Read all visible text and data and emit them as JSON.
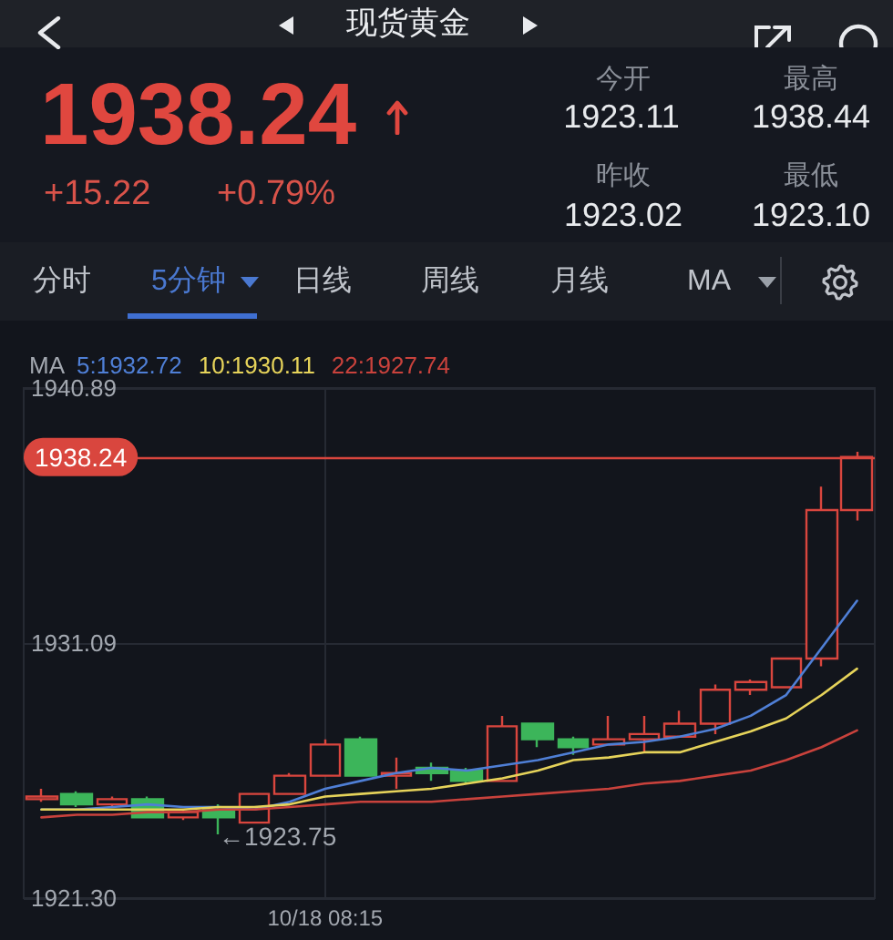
{
  "chart_data": {
    "type": "candlestick",
    "title": "现货黄金",
    "categories": [
      null,
      null,
      null,
      null,
      null,
      null,
      null,
      null,
      "10/18 08:15",
      null,
      null,
      null,
      null,
      null,
      null,
      null,
      null,
      null,
      null,
      null,
      null,
      null,
      null,
      null
    ],
    "ohlc": [
      [
        1925.1,
        1925.5,
        1925.0,
        1925.2
      ],
      [
        1925.3,
        1925.4,
        1924.8,
        1924.9
      ],
      [
        1924.9,
        1925.2,
        1924.8,
        1925.1
      ],
      [
        1925.1,
        1925.2,
        1924.4,
        1924.4
      ],
      [
        1924.4,
        1924.7,
        1924.3,
        1924.6
      ],
      [
        1924.7,
        1924.9,
        1923.75,
        1924.4
      ],
      [
        1924.2,
        1925.3,
        1924.2,
        1925.3
      ],
      [
        1925.3,
        1926.1,
        1925.3,
        1926.0
      ],
      [
        1926.0,
        1927.4,
        1926.0,
        1927.2
      ],
      [
        1927.4,
        1927.5,
        1926.0,
        1926.0
      ],
      [
        1926.0,
        1926.7,
        1925.5,
        1926.1
      ],
      [
        1926.3,
        1926.5,
        1925.8,
        1926.1
      ],
      [
        1926.2,
        1926.3,
        1925.7,
        1925.8
      ],
      [
        1925.8,
        1928.3,
        1925.8,
        1927.9
      ],
      [
        1928.0,
        1928.0,
        1927.1,
        1927.4
      ],
      [
        1927.4,
        1927.5,
        1926.8,
        1927.1
      ],
      [
        1927.2,
        1928.3,
        1927.2,
        1927.4
      ],
      [
        1927.4,
        1928.3,
        1926.9,
        1927.6
      ],
      [
        1927.5,
        1928.5,
        1927.5,
        1928.0
      ],
      [
        1928.0,
        1929.5,
        1927.6,
        1929.3
      ],
      [
        1929.3,
        1929.7,
        1929.1,
        1929.6
      ],
      [
        1929.4,
        1930.5,
        1929.4,
        1930.5
      ],
      [
        1930.5,
        1937.1,
        1930.2,
        1936.2
      ],
      [
        1936.2,
        1938.44,
        1935.8,
        1938.24
      ]
    ],
    "colors": [
      "#d9463e",
      "#3cb55a",
      "#d9463e",
      "#3cb55a",
      "#d9463e",
      "#3cb55a",
      "#d9463e",
      "#d9463e",
      "#d9463e",
      "#3cb55a",
      "#d9463e",
      "#3cb55a",
      "#3cb55a",
      "#d9463e",
      "#3cb55a",
      "#3cb55a",
      "#d9463e",
      "#d9463e",
      "#d9463e",
      "#d9463e",
      "#d9463e",
      "#d9463e",
      "#d9463e",
      "#d9463e"
    ],
    "series": [
      {
        "type": "line",
        "name": "5:1932.72",
        "color": "#4f7fd6",
        "values": [
          1924.7,
          1924.7,
          1924.8,
          1924.9,
          1924.8,
          1924.8,
          1924.7,
          1925.0,
          1925.5,
          1925.8,
          1926.1,
          1926.3,
          1926.2,
          1926.4,
          1926.6,
          1926.9,
          1927.2,
          1927.3,
          1927.5,
          1927.8,
          1928.3,
          1929.1,
          1930.9,
          1932.72
        ]
      },
      {
        "type": "line",
        "name": "10:1930.11",
        "color": "#e6d35a",
        "values": [
          1924.7,
          1924.7,
          1924.7,
          1924.7,
          1924.7,
          1924.8,
          1924.8,
          1924.9,
          1925.2,
          1925.3,
          1925.4,
          1925.5,
          1925.7,
          1925.9,
          1926.2,
          1926.6,
          1926.7,
          1926.9,
          1926.9,
          1927.3,
          1927.7,
          1928.2,
          1929.1,
          1930.11
        ]
      },
      {
        "type": "line",
        "name": "22:1927.74",
        "color": "#c9423c",
        "values": [
          1924.4,
          1924.5,
          1924.5,
          1924.6,
          1924.6,
          1924.7,
          1924.7,
          1924.8,
          1924.9,
          1925.0,
          1925.0,
          1925.0,
          1925.1,
          1925.2,
          1925.3,
          1925.4,
          1925.5,
          1925.7,
          1925.8,
          1926.0,
          1926.2,
          1926.6,
          1927.1,
          1927.74
        ]
      }
    ],
    "ylim": [
      1921.3,
      1940.89
    ],
    "yticks": [
      {
        "value": 1921.3,
        "label": "1921.30"
      },
      1931.09,
      1940.89
    ],
    "ref_lines": [
      {
        "axis": "y",
        "value": 1938.24,
        "label": "1938.24",
        "color": "#d9463e"
      }
    ],
    "legend": "top left",
    "legend_title": "MA",
    "grid": true,
    "marker": "none",
    "annotations": [
      "1938.24",
      "+15.22",
      "+0.79%",
      "今开",
      "1923.11",
      "最高",
      "1938.44",
      "昨收",
      "1923.02",
      "最低",
      "1923.10",
      "分时",
      "5分钟",
      "日线",
      "周线",
      "月线",
      "MA",
      "←1923.75"
    ]
  }
}
